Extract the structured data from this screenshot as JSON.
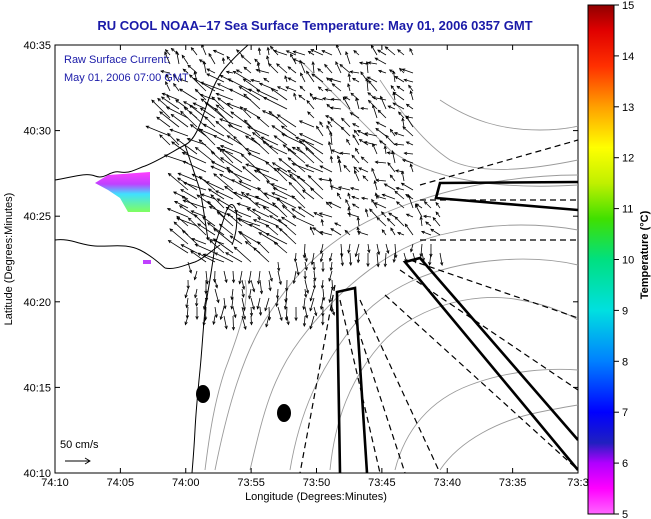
{
  "title": "RU COOL  NOAA–17  Sea Surface Temperature:  May 01, 2006 0357 GMT",
  "legend": {
    "line1": "Raw Surface Current:",
    "line2": "May 01, 2006 07:00 GMT"
  },
  "scale_label": "50 cm/s",
  "axes": {
    "xlabel": "Longitude (Degrees:Minutes)",
    "ylabel": "Latitude (Degrees:Minutes)",
    "xticks": [
      "74:10",
      "74:05",
      "74:00",
      "73:55",
      "73:50",
      "73:45",
      "73:40",
      "73:35",
      "73:3"
    ],
    "yticks": [
      "40:35",
      "40:30",
      "40:25",
      "40:20",
      "40:15",
      "40:10"
    ]
  },
  "colorbar": {
    "label": "Temperature (°C)",
    "min": 5,
    "max": 15,
    "ticks": [
      "15",
      "14",
      "13",
      "12",
      "11",
      "10",
      "9",
      "8",
      "7",
      "6",
      "5"
    ]
  },
  "colors": {
    "title": "#1a1aa8",
    "legend_text": "#1a1aa8",
    "land_line": "#000000",
    "bathymetry": "#9a9a9a",
    "vectors": "#000000"
  }
}
